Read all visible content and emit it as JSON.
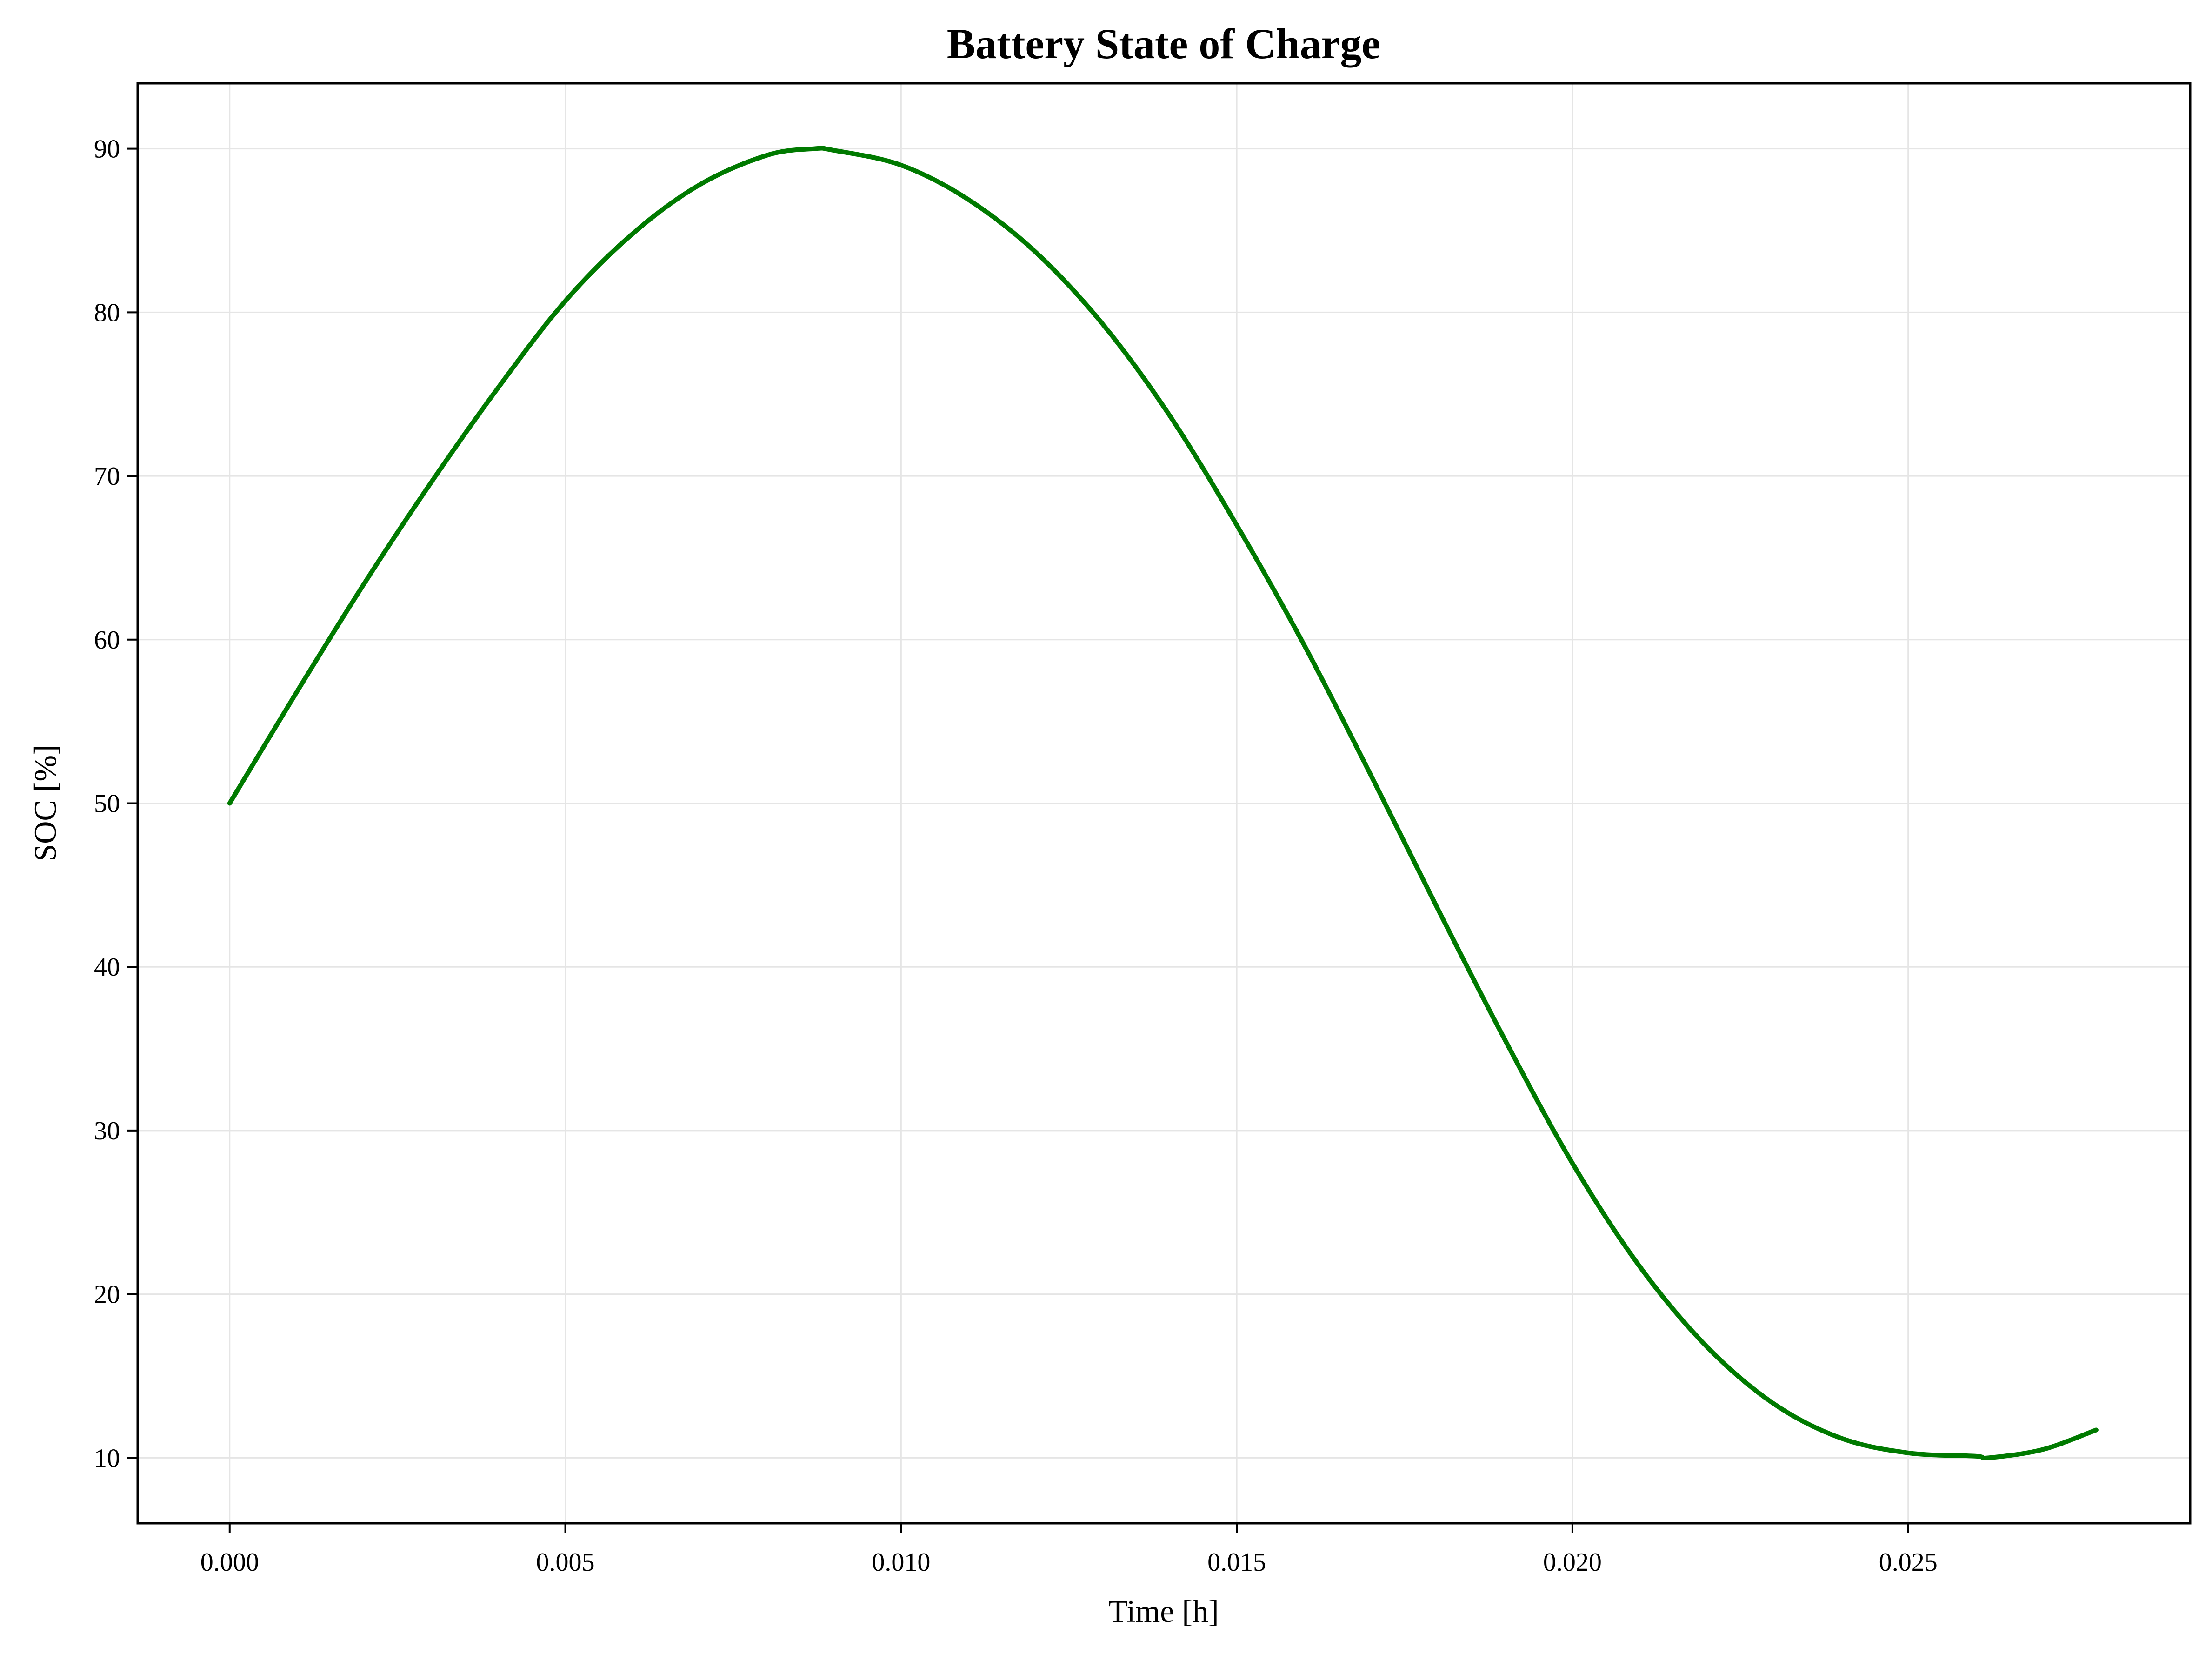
{
  "chart_data": {
    "type": "line",
    "title": "Battery State of Charge",
    "xlabel": "Time [h]",
    "ylabel": "SOC [%]",
    "xlim": [
      -0.00137,
      0.0292
    ],
    "ylim": [
      6,
      94
    ],
    "xticks": [
      "0.000",
      "0.005",
      "0.010",
      "0.015",
      "0.020",
      "0.025"
    ],
    "yticks": [
      "10",
      "20",
      "30",
      "40",
      "50",
      "60",
      "70",
      "80",
      "90"
    ],
    "grid": true,
    "legend": "none",
    "series": [
      {
        "color": "#007a00",
        "x": [
          0.0,
          0.001,
          0.002,
          0.003,
          0.004,
          0.005,
          0.006,
          0.007,
          0.008,
          0.0087,
          0.009,
          0.01,
          0.011,
          0.012,
          0.013,
          0.014,
          0.015,
          0.016,
          0.017,
          0.018,
          0.019,
          0.02,
          0.021,
          0.022,
          0.023,
          0.024,
          0.025,
          0.026,
          0.0262,
          0.027,
          0.0278
        ],
        "y": [
          50.0,
          56.8,
          63.4,
          69.6,
          75.4,
          80.7,
          84.8,
          87.8,
          89.6,
          90.0,
          89.9,
          89.0,
          86.9,
          83.7,
          79.3,
          73.7,
          67.0,
          59.7,
          51.7,
          43.5,
          35.5,
          28.0,
          21.7,
          16.8,
          13.3,
          11.2,
          10.3,
          10.1,
          10.0,
          10.5,
          11.7
        ]
      }
    ]
  }
}
